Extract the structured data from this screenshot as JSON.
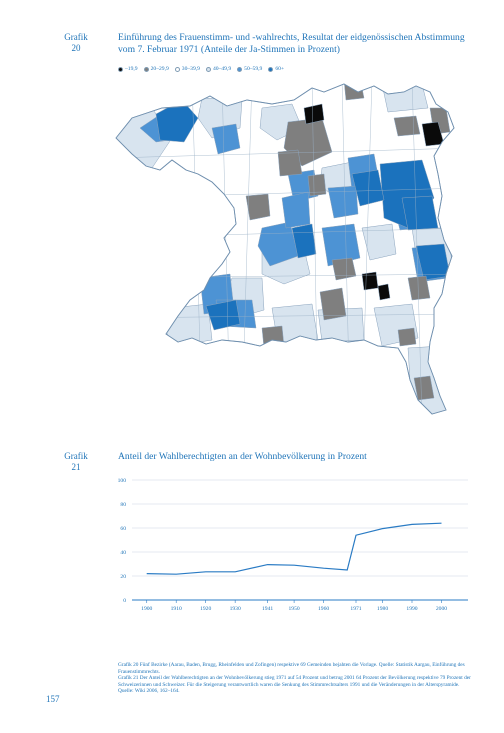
{
  "graph20": {
    "label": "Grafik\n20",
    "title": "Einführung des Frauenstimm- und -wahlrechts, Resultat der eidgenössischen Abstimmung vom 7. Februar 1971 (Anteile der Ja-Stimmen in Prozent)",
    "legend": [
      {
        "label": "–19,9",
        "color": "#0a0a0a"
      },
      {
        "label": "20–29,9",
        "color": "#7f7f7f"
      },
      {
        "label": "30–39,9",
        "color": "#ffffff"
      },
      {
        "label": "40–49,9",
        "color": "#d8e4ef"
      },
      {
        "label": "50–59,9",
        "color": "#4d93d4"
      },
      {
        "label": "60+",
        "color": "#1b72bd"
      }
    ]
  },
  "graph21": {
    "label": "Grafik\n21",
    "title": "Anteil der Wahlberechtigten an der Wohnbevölkerung in Prozent",
    "chart_data": {
      "type": "line",
      "x": [
        1900,
        1910,
        1920,
        1930,
        1941,
        1950,
        1960,
        1968,
        1971,
        1980,
        1990,
        2000
      ],
      "series": [
        {
          "values": [
            22,
            21.5,
            23.5,
            23.5,
            29.5,
            29,
            26.5,
            25,
            54,
            59.5,
            63,
            64
          ]
        }
      ],
      "x_tick_labels": [
        "1900",
        "1910",
        "1920",
        "1930",
        "1941",
        "1950",
        "1960",
        "1971",
        "1980",
        "1990",
        "2000"
      ],
      "y_ticks": [
        0,
        20,
        40,
        60,
        80,
        100
      ],
      "ylim": [
        0,
        100
      ],
      "xlim": [
        1895,
        2009
      ],
      "grid": "horizontal",
      "line_color": "#2a7bc4"
    }
  },
  "footnotes": [
    "Grafik 20 Fünf Bezirke (Aarau, Baden, Brugg, Rheinfelden und Zofingen) respektive 69 Gemeinden bejahten die Vorlage. Quelle: Statistik Aargau, Einführung des Frauenstimmrechts.",
    "Grafik 21 Der Anteil der Wahlberechtigten an der Wohnbevölkerung stieg 1971 auf 54 Prozent und betrug 2001 64 Prozent der Bevölkerung respektive 79 Prozent der Schweizerinnen und Schweizer. Für die Steigerung verantwortlich waren die Senkung des Stimmrechtsalters 1991 und die Veränderungen in der Alterspyramide. Quelle: Wiki 2006, 162–164."
  ],
  "page_number": "157"
}
